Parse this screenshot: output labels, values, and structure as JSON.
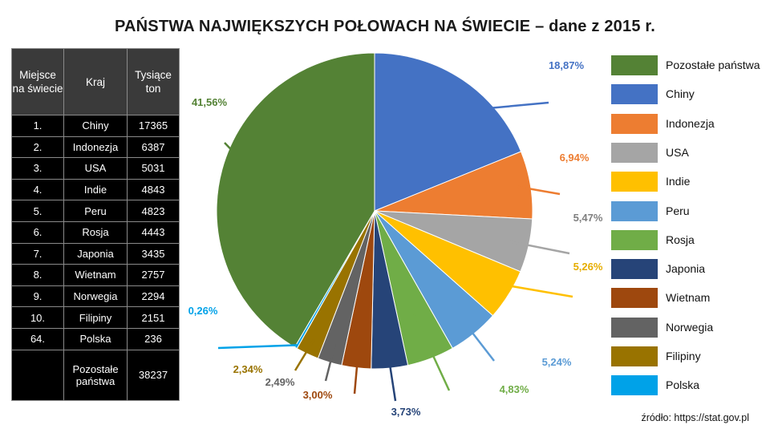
{
  "title": "PAŃSTWA  NAJWIĘKSZYCH POŁOWACH NA ŚWIECIE – dane z 2015 r.",
  "source": "źródło: https://stat.gov.pl",
  "table": {
    "headers": [
      "Miejsce na świecie",
      "Kraj",
      "Tysiące ton"
    ],
    "rows": [
      [
        "1.",
        "Chiny",
        "17365"
      ],
      [
        "2.",
        "Indonezja",
        "6387"
      ],
      [
        "3.",
        "USA",
        "5031"
      ],
      [
        "4.",
        "Indie",
        "4843"
      ],
      [
        "5.",
        "Peru",
        "4823"
      ],
      [
        "6.",
        "Rosja",
        "4443"
      ],
      [
        "7.",
        "Japonia",
        "3435"
      ],
      [
        "8.",
        "Wietnam",
        "2757"
      ],
      [
        "9.",
        "Norwegia",
        "2294"
      ],
      [
        "10.",
        "Filipiny",
        "2151"
      ],
      [
        "64.",
        "Polska",
        "236"
      ],
      [
        "",
        "Pozostałe państwa",
        "38237"
      ]
    ]
  },
  "chart_data": {
    "type": "pie",
    "title": "PAŃSTWA  NAJWIĘKSZYCH POŁOWACH NA ŚWIECIE – dane z 2015 r.",
    "legend_position": "right",
    "start": "top, clockwise",
    "slices": [
      {
        "label": "Chiny",
        "value": 18.87,
        "text": "18,87%",
        "color": "#4472C4"
      },
      {
        "label": "Indonezja",
        "value": 6.94,
        "text": "6,94%",
        "color": "#ED7D31"
      },
      {
        "label": "USA",
        "value": 5.47,
        "text": "5,47%",
        "color": "#A5A5A5"
      },
      {
        "label": "Indie",
        "value": 5.26,
        "text": "5,26%",
        "color": "#FFC000"
      },
      {
        "label": "Peru",
        "value": 5.24,
        "text": "5,24%",
        "color": "#5B9BD5"
      },
      {
        "label": "Rosja",
        "value": 4.83,
        "text": "4,83%",
        "color": "#70AD47"
      },
      {
        "label": "Japonia",
        "value": 3.73,
        "text": "3,73%",
        "color": "#264478"
      },
      {
        "label": "Wietnam",
        "value": 3.0,
        "text": "3,00%",
        "color": "#9E480E"
      },
      {
        "label": "Norwegia",
        "value": 2.49,
        "text": "2,49%",
        "color": "#636363"
      },
      {
        "label": "Filipiny",
        "value": 2.34,
        "text": "2,34%",
        "color": "#997300"
      },
      {
        "label": "Polska",
        "value": 0.26,
        "text": "0,26%",
        "color": "#00A2E8"
      },
      {
        "label": "Pozostałe państwa",
        "value": 41.56,
        "text": "41,56%",
        "color": "#548235"
      }
    ],
    "legend": [
      "Pozostałe państwa",
      "Chiny",
      "Indonezja",
      "USA",
      "Indie",
      "Peru",
      "Rosja",
      "Japonia",
      "Wietnam",
      "Norwegia",
      "Filipiny",
      "Polska"
    ]
  }
}
